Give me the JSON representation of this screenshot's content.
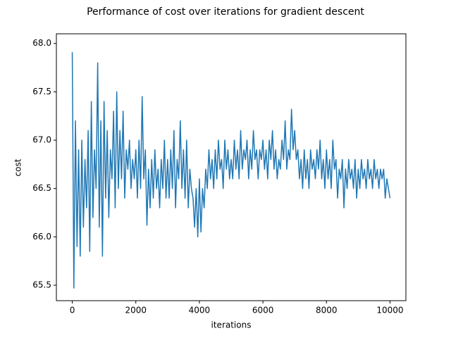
{
  "chart_data": {
    "type": "line",
    "title": "Performance of cost over iterations for gradient descent",
    "x_label": "iterations",
    "y_label": "cost",
    "x": [
      0,
      50,
      100,
      150,
      200,
      250,
      300,
      350,
      400,
      450,
      500,
      550,
      600,
      650,
      700,
      750,
      800,
      850,
      900,
      950,
      1000,
      1050,
      1100,
      1150,
      1200,
      1250,
      1300,
      1350,
      1400,
      1450,
      1500,
      1550,
      1600,
      1650,
      1700,
      1750,
      1800,
      1850,
      1900,
      1950,
      2000,
      2050,
      2100,
      2150,
      2200,
      2250,
      2300,
      2350,
      2400,
      2450,
      2500,
      2550,
      2600,
      2650,
      2700,
      2750,
      2800,
      2850,
      2900,
      2950,
      3000,
      3050,
      3100,
      3150,
      3200,
      3250,
      3300,
      3350,
      3400,
      3450,
      3500,
      3550,
      3600,
      3650,
      3700,
      3750,
      3800,
      3850,
      3900,
      3950,
      4000,
      4050,
      4100,
      4150,
      4200,
      4250,
      4300,
      4350,
      4400,
      4450,
      4500,
      4550,
      4600,
      4650,
      4700,
      4750,
      4800,
      4850,
      4900,
      4950,
      5000,
      5050,
      5100,
      5150,
      5200,
      5250,
      5300,
      5350,
      5400,
      5450,
      5500,
      5550,
      5600,
      5650,
      5700,
      5750,
      5800,
      5850,
      5900,
      5950,
      6000,
      6050,
      6100,
      6150,
      6200,
      6250,
      6300,
      6350,
      6400,
      6450,
      6500,
      6550,
      6600,
      6650,
      6700,
      6750,
      6800,
      6850,
      6900,
      6950,
      7000,
      7050,
      7100,
      7150,
      7200,
      7250,
      7300,
      7350,
      7400,
      7450,
      7500,
      7550,
      7600,
      7650,
      7700,
      7750,
      7800,
      7850,
      7900,
      7950,
      8000,
      8050,
      8100,
      8150,
      8200,
      8250,
      8300,
      8350,
      8400,
      8450,
      8500,
      8550,
      8600,
      8650,
      8700,
      8750,
      8800,
      8850,
      8900,
      8950,
      9000,
      9050,
      9100,
      9150,
      9200,
      9250,
      9300,
      9350,
      9400,
      9450,
      9500,
      9550,
      9600,
      9650,
      9700,
      9750,
      9800,
      9850,
      9900,
      9950,
      10000
    ],
    "series": [
      {
        "name": "cost",
        "color": "#1f77b4",
        "values": [
          67.91,
          65.47,
          67.2,
          65.9,
          66.9,
          65.8,
          67.0,
          66.1,
          66.8,
          66.3,
          67.1,
          65.85,
          67.4,
          66.2,
          66.9,
          66.5,
          67.8,
          66.1,
          67.2,
          65.8,
          67.4,
          66.4,
          67.1,
          66.2,
          66.9,
          66.6,
          67.3,
          66.3,
          67.5,
          66.5,
          67.1,
          66.6,
          67.3,
          66.4,
          66.9,
          66.7,
          67.0,
          66.5,
          66.8,
          66.6,
          66.9,
          66.4,
          67.0,
          66.5,
          67.45,
          66.6,
          66.9,
          66.12,
          66.7,
          66.3,
          66.8,
          66.4,
          66.9,
          66.5,
          66.7,
          66.3,
          66.8,
          66.5,
          67.0,
          66.4,
          66.8,
          66.4,
          66.9,
          66.5,
          67.1,
          66.3,
          66.8,
          66.6,
          67.2,
          66.5,
          66.9,
          66.4,
          67.0,
          66.3,
          66.7,
          66.5,
          66.4,
          66.1,
          66.5,
          66.0,
          66.6,
          66.05,
          66.5,
          66.3,
          66.7,
          66.5,
          66.9,
          66.6,
          66.8,
          66.5,
          66.9,
          66.6,
          67.0,
          66.7,
          66.8,
          66.5,
          67.0,
          66.7,
          66.9,
          66.6,
          66.8,
          66.6,
          67.0,
          66.7,
          66.9,
          66.6,
          67.1,
          66.7,
          66.9,
          66.8,
          67.0,
          66.6,
          66.9,
          66.7,
          67.1,
          66.8,
          66.9,
          66.6,
          66.9,
          66.8,
          67.0,
          66.7,
          66.9,
          66.6,
          67.0,
          66.8,
          67.1,
          66.7,
          66.9,
          66.6,
          66.8,
          66.7,
          67.0,
          66.8,
          67.2,
          66.7,
          66.9,
          66.8,
          67.32,
          66.9,
          67.1,
          66.8,
          66.9,
          66.6,
          66.8,
          66.5,
          66.9,
          66.6,
          66.8,
          66.5,
          66.9,
          66.7,
          66.8,
          66.6,
          66.9,
          66.7,
          67.0,
          66.6,
          66.8,
          66.5,
          66.9,
          66.6,
          66.8,
          66.5,
          67.0,
          66.7,
          66.8,
          66.4,
          66.7,
          66.6,
          66.8,
          66.3,
          66.7,
          66.5,
          66.8,
          66.6,
          66.7,
          66.5,
          66.8,
          66.4,
          66.7,
          66.5,
          66.8,
          66.6,
          66.7,
          66.5,
          66.8,
          66.6,
          66.7,
          66.5,
          66.8,
          66.6,
          66.7,
          66.5,
          66.7,
          66.6,
          66.7,
          66.4,
          66.6,
          66.5,
          66.4
        ]
      }
    ],
    "xlim": [
      -500,
      10500
    ],
    "ylim": [
      65.34,
      68.1
    ],
    "xticks": [
      0,
      2000,
      4000,
      6000,
      8000,
      10000
    ],
    "yticks": [
      {
        "value": 65.5,
        "label": "65.5"
      },
      {
        "value": 66,
        "label": "66.0"
      },
      {
        "value": 66.5,
        "label": "66.5"
      },
      {
        "value": 67,
        "label": "67.0"
      },
      {
        "value": 67.5,
        "label": "67.5"
      },
      {
        "value": 68,
        "label": "68.0"
      }
    ]
  }
}
